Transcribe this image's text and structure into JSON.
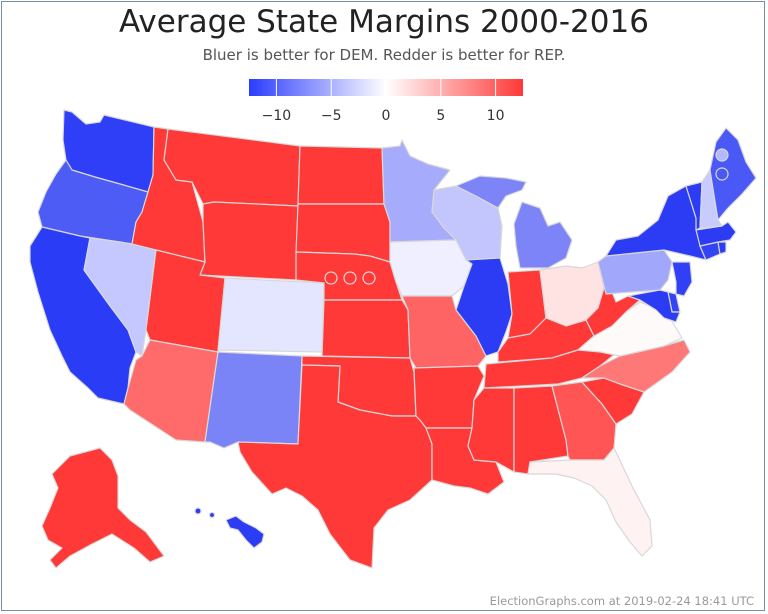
{
  "title": "Average State Margins 2000-2016",
  "subtitle": "Bluer is better for DEM. Redder is better for REP.",
  "legend": {
    "colors": {
      "dem_max": "#2b3cff",
      "neutral": "#ffffff",
      "rep_max": "#ff3838"
    },
    "ticks": [
      "−10",
      "−5",
      "0",
      "5",
      "10"
    ],
    "tick_values": [
      -10,
      -5,
      0,
      5,
      10
    ],
    "range": [
      -12.5,
      12.5
    ]
  },
  "credit": "ElectionGraphs.com at 2019-02-24 18:41 UTC",
  "states": {
    "WA": {
      "color": "#2f3ff8"
    },
    "OR": {
      "color": "#4d5cf5"
    },
    "CA": {
      "color": "#2a3cf6"
    },
    "NV": {
      "color": "#c5c8ff"
    },
    "ID": {
      "color": "#ff3838"
    },
    "MT": {
      "color": "#ff3838"
    },
    "WY": {
      "color": "#ff3838"
    },
    "UT": {
      "color": "#ff3838"
    },
    "CO": {
      "color": "#e4e5ff"
    },
    "AZ": {
      "color": "#ff6b6b"
    },
    "NM": {
      "color": "#7b84f7"
    },
    "ND": {
      "color": "#ff3838"
    },
    "SD": {
      "color": "#ff3838"
    },
    "NE": {
      "color": "#ff3838"
    },
    "KS": {
      "color": "#ff3838"
    },
    "OK": {
      "color": "#ff3838"
    },
    "TX": {
      "color": "#ff3838"
    },
    "MN": {
      "color": "#a7abfb"
    },
    "IA": {
      "color": "#efefff"
    },
    "MO": {
      "color": "#ff6464"
    },
    "AR": {
      "color": "#ff3838"
    },
    "LA": {
      "color": "#ff3838"
    },
    "WI": {
      "color": "#c3c6fd"
    },
    "IL": {
      "color": "#2c3cf4"
    },
    "MI": {
      "color": "#7c84f8"
    },
    "IN": {
      "color": "#ff3838"
    },
    "OH": {
      "color": "#ffe2e2"
    },
    "KY": {
      "color": "#ff3838"
    },
    "TN": {
      "color": "#ff3838"
    },
    "MS": {
      "color": "#ff3838"
    },
    "AL": {
      "color": "#ff3838"
    },
    "GA": {
      "color": "#ff5555"
    },
    "FL": {
      "color": "#fff2f2"
    },
    "SC": {
      "color": "#ff3838"
    },
    "NC": {
      "color": "#ff7878"
    },
    "VA": {
      "color": "#fffafa"
    },
    "WV": {
      "color": "#ff3838"
    },
    "PA": {
      "color": "#a1a7fb"
    },
    "NY": {
      "color": "#2b3cf4"
    },
    "VT": {
      "color": "#2b3cf4"
    },
    "NH": {
      "color": "#c8cbfd"
    },
    "ME": {
      "color": "#4a58f6"
    },
    "MA": {
      "color": "#2b3cf4"
    },
    "CT": {
      "color": "#3444f4"
    },
    "RI": {
      "color": "#2b3cf4"
    },
    "NJ": {
      "color": "#3140f4"
    },
    "DE": {
      "color": "#3444f4"
    },
    "MD": {
      "color": "#2b3cf4"
    },
    "AK": {
      "color": "#ff3838"
    },
    "HI": {
      "color": "#2b3cf4"
    },
    "NE1": {
      "color": "#ff3838"
    },
    "NE2": {
      "color": "#ff3838"
    },
    "NE3": {
      "color": "#ff3838"
    },
    "ME1": {
      "color": "#b3b8ff"
    },
    "ME2": {
      "color": "#4a58f6"
    }
  }
}
